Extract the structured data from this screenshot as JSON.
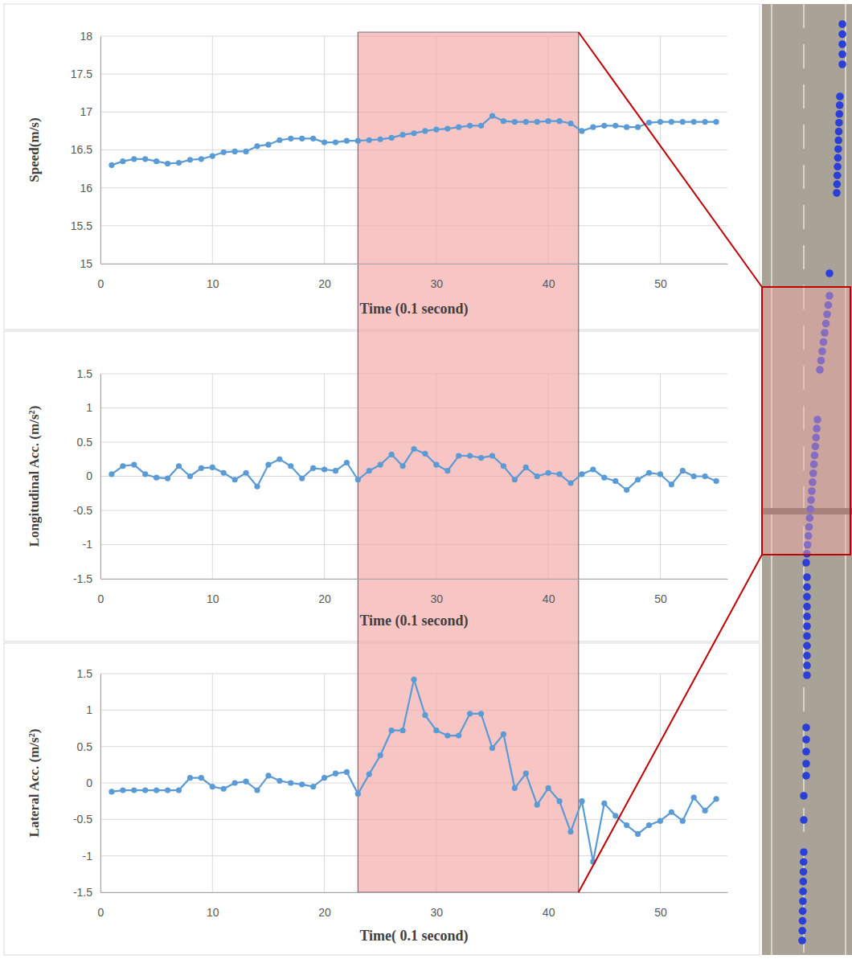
{
  "chart_data": [
    {
      "type": "line",
      "y_label": "Speed(m/s)",
      "x_label": "Time (0.1 second)",
      "x": [
        1,
        2,
        3,
        4,
        5,
        6,
        7,
        8,
        9,
        10,
        11,
        12,
        13,
        14,
        15,
        16,
        17,
        18,
        19,
        20,
        21,
        22,
        23,
        24,
        25,
        26,
        27,
        28,
        29,
        30,
        31,
        32,
        33,
        34,
        35,
        36,
        37,
        38,
        39,
        40,
        41,
        42,
        43,
        44,
        45,
        46,
        47,
        48,
        49,
        50,
        51,
        52,
        53,
        54,
        55
      ],
      "values": [
        16.3,
        16.35,
        16.38,
        16.38,
        16.35,
        16.32,
        16.33,
        16.37,
        16.38,
        16.42,
        16.47,
        16.48,
        16.48,
        16.55,
        16.57,
        16.63,
        16.65,
        16.65,
        16.65,
        16.6,
        16.6,
        16.62,
        16.62,
        16.63,
        16.64,
        16.66,
        16.7,
        16.72,
        16.75,
        16.77,
        16.78,
        16.8,
        16.82,
        16.82,
        16.95,
        16.88,
        16.87,
        16.87,
        16.87,
        16.88,
        16.88,
        16.85,
        16.75,
        16.8,
        16.82,
        16.82,
        16.8,
        16.8,
        16.86,
        16.87,
        16.87,
        16.87,
        16.87,
        16.87,
        16.87
      ],
      "color": "#5b9bd5",
      "marker": "circle",
      "line_style": "solid",
      "grid": true,
      "xlim": [
        0,
        56
      ],
      "xticks": [
        0,
        10,
        20,
        30,
        40,
        50
      ],
      "ylim": [
        15,
        18
      ],
      "yticks": [
        15,
        15.5,
        16,
        16.5,
        17,
        17.5,
        18
      ],
      "highlight_range": [
        23,
        42.7
      ]
    },
    {
      "type": "line",
      "y_label": "Longitudinal Acc. (m/s²)",
      "x_label": "Time (0.1 second)",
      "x": [
        1,
        2,
        3,
        4,
        5,
        6,
        7,
        8,
        9,
        10,
        11,
        12,
        13,
        14,
        15,
        16,
        17,
        18,
        19,
        20,
        21,
        22,
        23,
        24,
        25,
        26,
        27,
        28,
        29,
        30,
        31,
        32,
        33,
        34,
        35,
        36,
        37,
        38,
        39,
        40,
        41,
        42,
        43,
        44,
        45,
        46,
        47,
        48,
        49,
        50,
        51,
        52,
        53,
        54,
        55
      ],
      "values": [
        0.03,
        0.15,
        0.17,
        0.03,
        -0.02,
        -0.03,
        0.15,
        0.0,
        0.12,
        0.13,
        0.05,
        -0.05,
        0.05,
        -0.15,
        0.17,
        0.25,
        0.15,
        -0.03,
        0.12,
        0.1,
        0.08,
        0.2,
        -0.05,
        0.08,
        0.17,
        0.32,
        0.15,
        0.4,
        0.33,
        0.17,
        0.08,
        0.3,
        0.3,
        0.27,
        0.3,
        0.15,
        -0.05,
        0.13,
        0.0,
        0.05,
        0.03,
        -0.1,
        0.03,
        0.1,
        -0.02,
        -0.07,
        -0.2,
        -0.05,
        0.05,
        0.03,
        -0.12,
        0.08,
        0.0,
        0.0,
        -0.07
      ],
      "color": "#5b9bd5",
      "marker": "circle",
      "line_style": "solid",
      "grid": true,
      "xlim": [
        0,
        56
      ],
      "xticks": [
        0,
        10,
        20,
        30,
        40,
        50
      ],
      "ylim": [
        -1.5,
        1.5
      ],
      "yticks": [
        -1.5,
        -1,
        -0.5,
        0,
        0.5,
        1,
        1.5
      ],
      "highlight_range": [
        23,
        42.7
      ]
    },
    {
      "type": "line",
      "y_label": "Lateral  Acc. (m/s²)",
      "x_label": "Time( 0.1 second)",
      "x": [
        1,
        2,
        3,
        4,
        5,
        6,
        7,
        8,
        9,
        10,
        11,
        12,
        13,
        14,
        15,
        16,
        17,
        18,
        19,
        20,
        21,
        22,
        23,
        24,
        25,
        26,
        27,
        28,
        29,
        30,
        31,
        32,
        33,
        34,
        35,
        36,
        37,
        38,
        39,
        40,
        41,
        42,
        43,
        44,
        45,
        46,
        47,
        48,
        49,
        50,
        51,
        52,
        53,
        54,
        55
      ],
      "values": [
        -0.12,
        -0.1,
        -0.1,
        -0.1,
        -0.1,
        -0.1,
        -0.1,
        0.07,
        0.07,
        -0.05,
        -0.08,
        0.0,
        0.02,
        -0.1,
        0.1,
        0.03,
        0.0,
        -0.02,
        -0.05,
        0.07,
        0.13,
        0.15,
        -0.15,
        0.12,
        0.38,
        0.72,
        0.72,
        1.42,
        0.93,
        0.72,
        0.65,
        0.65,
        0.95,
        0.95,
        0.48,
        0.67,
        -0.07,
        0.13,
        -0.3,
        -0.07,
        -0.25,
        -0.67,
        -0.25,
        -1.08,
        -0.28,
        -0.45,
        -0.58,
        -0.7,
        -0.58,
        -0.52,
        -0.4,
        -0.52,
        -0.2,
        -0.38,
        -0.22
      ],
      "color": "#5b9bd5",
      "marker": "circle",
      "line_style": "solid",
      "grid": true,
      "xlim": [
        0,
        56
      ],
      "xticks": [
        0,
        10,
        20,
        30,
        40,
        50
      ],
      "ylim": [
        -1.5,
        1.5
      ],
      "yticks": [
        -1.5,
        -1,
        -0.5,
        0,
        0.5,
        1,
        1.5
      ],
      "highlight_range": [
        23,
        42.7
      ]
    }
  ]
}
